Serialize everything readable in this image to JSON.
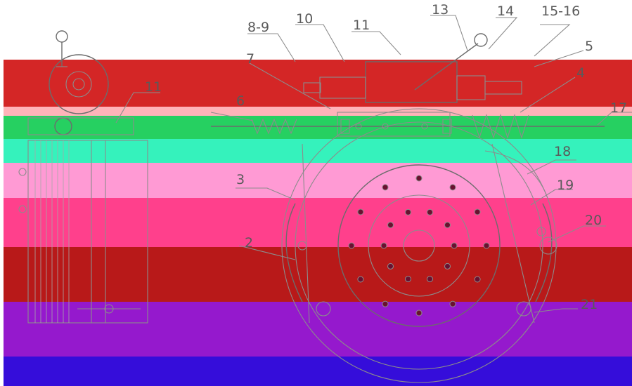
{
  "drawing": {
    "title": "",
    "callouts": [
      {
        "id": "c1",
        "label": "8-9"
      },
      {
        "id": "c2",
        "label": "10"
      },
      {
        "id": "c3",
        "label": "11"
      },
      {
        "id": "c4",
        "label": "13"
      },
      {
        "id": "c5",
        "label": "14"
      },
      {
        "id": "c6",
        "label": "15-16"
      },
      {
        "id": "c7",
        "label": "5"
      },
      {
        "id": "c8",
        "label": "4"
      },
      {
        "id": "c9",
        "label": "7"
      },
      {
        "id": "c10",
        "label": "6"
      },
      {
        "id": "c11",
        "label": "17"
      },
      {
        "id": "c12",
        "label": "18"
      },
      {
        "id": "c13",
        "label": "3"
      },
      {
        "id": "c14",
        "label": "19"
      },
      {
        "id": "c15",
        "label": "20"
      },
      {
        "id": "c16",
        "label": "2"
      },
      {
        "id": "c17",
        "label": "21"
      },
      {
        "id": "c18",
        "label": "11"
      }
    ]
  },
  "colors": {
    "bands": [
      "#cc0000",
      "#ff9aa2",
      "#00c845",
      "#12f0b0",
      "#ff88cc",
      "#ff1e78",
      "#b00000",
      "#8a00c8",
      "#2a00d8"
    ],
    "line": "#8c8c8c"
  }
}
